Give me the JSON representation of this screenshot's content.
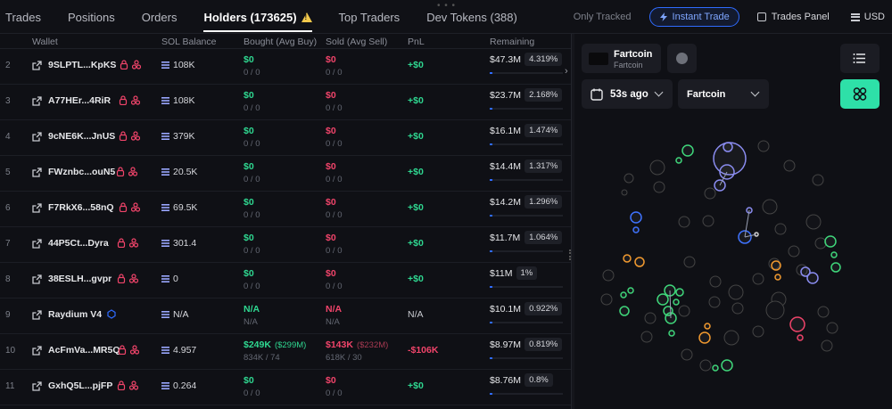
{
  "tabs": [
    {
      "label": "Trades"
    },
    {
      "label": "Positions"
    },
    {
      "label": "Orders"
    },
    {
      "label": "Holders (173625)"
    },
    {
      "label": "Top Traders"
    },
    {
      "label": "Dev Tokens (388)"
    }
  ],
  "topright": {
    "only_tracked": "Only Tracked",
    "instant_trade": "Instant Trade",
    "trades_panel": "Trades Panel",
    "currency": "USD"
  },
  "columns": {
    "wallet": "Wallet",
    "sol_balance": "SOL Balance",
    "bought": "Bought (Avg Buy)",
    "sold": "Sold (Avg Sell)",
    "pnl": "PnL",
    "remaining": "Remaining"
  },
  "rows": [
    {
      "idx": "2",
      "wallet": "9SLPTL...KpKS",
      "tags": 2,
      "sol": "108K",
      "bought": "$0",
      "bought_sub": "0 / 0",
      "bought_extra": "",
      "sold": "$0",
      "sold_sub": "0 / 0",
      "sold_extra": "",
      "pnl": "+$0",
      "pnl_color": "green",
      "remaining": "$47.3M",
      "pct": "4.319%",
      "fill": 0.04
    },
    {
      "idx": "3",
      "wallet": "A77HEr...4RiR",
      "tags": 2,
      "sol": "108K",
      "bought": "$0",
      "bought_sub": "0 / 0",
      "bought_extra": "",
      "sold": "$0",
      "sold_sub": "0 / 0",
      "sold_extra": "",
      "pnl": "+$0",
      "pnl_color": "green",
      "remaining": "$23.7M",
      "pct": "2.168%",
      "fill": 0.03
    },
    {
      "idx": "4",
      "wallet": "9cNE6K...JnUS",
      "tags": 2,
      "sol": "379K",
      "bought": "$0",
      "bought_sub": "0 / 0",
      "bought_extra": "",
      "sold": "$0",
      "sold_sub": "0 / 0",
      "sold_extra": "",
      "pnl": "+$0",
      "pnl_color": "green",
      "remaining": "$16.1M",
      "pct": "1.474%",
      "fill": 0.02
    },
    {
      "idx": "5",
      "wallet": "FWznbc...ouN5",
      "tags": 2,
      "sol": "20.5K",
      "bought": "$0",
      "bought_sub": "0 / 0",
      "bought_extra": "",
      "sold": "$0",
      "sold_sub": "0 / 0",
      "sold_extra": "",
      "pnl": "+$0",
      "pnl_color": "green",
      "remaining": "$14.4M",
      "pct": "1.317%",
      "fill": 0.02
    },
    {
      "idx": "6",
      "wallet": "F7RkX6...58nQ",
      "tags": 2,
      "sol": "69.5K",
      "bought": "$0",
      "bought_sub": "0 / 0",
      "bought_extra": "",
      "sold": "$0",
      "sold_sub": "0 / 0",
      "sold_extra": "",
      "pnl": "+$0",
      "pnl_color": "green",
      "remaining": "$14.2M",
      "pct": "1.296%",
      "fill": 0.02
    },
    {
      "idx": "7",
      "wallet": "44P5Ct...Dyra",
      "tags": 2,
      "sol": "301.4",
      "bought": "$0",
      "bought_sub": "0 / 0",
      "bought_extra": "",
      "sold": "$0",
      "sold_sub": "0 / 0",
      "sold_extra": "",
      "pnl": "+$0",
      "pnl_color": "green",
      "remaining": "$11.7M",
      "pct": "1.064%",
      "fill": 0.02
    },
    {
      "idx": "8",
      "wallet": "38ESLH...gvpr",
      "tags": 2,
      "sol": "0",
      "bought": "$0",
      "bought_sub": "0 / 0",
      "bought_extra": "",
      "sold": "$0",
      "sold_sub": "0 / 0",
      "sold_extra": "",
      "pnl": "+$0",
      "pnl_color": "green",
      "remaining": "$11M",
      "pct": "1%",
      "fill": 0.02
    },
    {
      "idx": "9",
      "wallet": "Raydium V4",
      "tags": 0,
      "raydium": true,
      "sol": "N/A",
      "bought": "N/A",
      "bought_sub": "N/A",
      "bought_extra": "",
      "sold": "N/A",
      "sold_sub": "N/A",
      "sold_extra": "",
      "pnl": "N/A",
      "pnl_color": "plain",
      "remaining": "$10.1M",
      "pct": "0.922%",
      "fill": 0.02
    },
    {
      "idx": "10",
      "wallet": "AcFmVa...MR5Q",
      "tags": 2,
      "sol": "4.957",
      "bought": "$249K",
      "bought_sub": "834K / 74",
      "bought_extra": "($299M)",
      "sold": "$143K",
      "sold_sub": "618K / 30",
      "sold_extra": "($232M)",
      "pnl": "-$106K",
      "pnl_color": "red",
      "remaining": "$8.97M",
      "pct": "0.819%",
      "fill": 0.02
    },
    {
      "idx": "11",
      "wallet": "GxhQ5L...pjFP",
      "tags": 2,
      "sol": "0.264",
      "bought": "$0",
      "bought_sub": "0 / 0",
      "bought_extra": "",
      "sold": "$0",
      "sold_sub": "0 / 0",
      "sold_extra": "",
      "pnl": "+$0",
      "pnl_color": "green",
      "remaining": "$8.76M",
      "pct": "0.8%",
      "fill": 0.02
    }
  ],
  "panel": {
    "token_name": "Fartcoin",
    "token_symbol": "Fartcoin",
    "time_label": "53s ago",
    "token_select": "Fartcoin"
  },
  "colors": {
    "green": "#2fd891",
    "red": "#f0446a",
    "blue": "#2f6bff",
    "accent": "#2ee0a8"
  }
}
